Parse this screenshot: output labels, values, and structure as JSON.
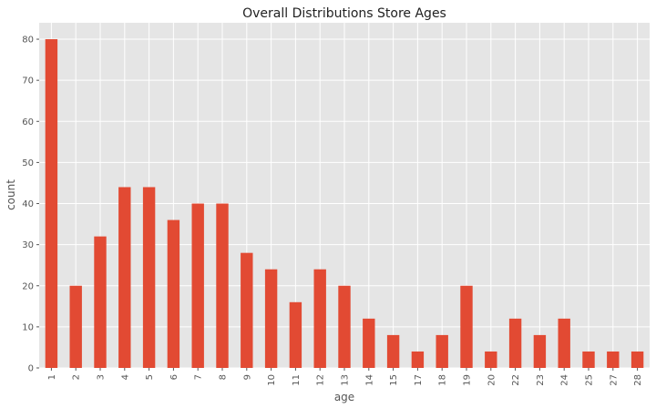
{
  "chart_data": {
    "type": "bar",
    "title": "Overall Distributions Store Ages",
    "xlabel": "age",
    "ylabel": "count",
    "categories": [
      "1",
      "2",
      "3",
      "4",
      "5",
      "6",
      "7",
      "8",
      "9",
      "10",
      "11",
      "12",
      "13",
      "14",
      "15",
      "17",
      "18",
      "19",
      "20",
      "22",
      "23",
      "24",
      "25",
      "27",
      "28"
    ],
    "values": [
      80,
      20,
      32,
      44,
      44,
      36,
      40,
      40,
      28,
      24,
      16,
      24,
      20,
      12,
      8,
      4,
      8,
      20,
      4,
      12,
      8,
      12,
      4,
      4,
      4
    ],
    "ylim": [
      0,
      84
    ],
    "yticks": [
      0,
      10,
      20,
      30,
      40,
      50,
      60,
      70,
      80
    ],
    "grid": true,
    "colors": {
      "bar": "#E24A33",
      "plot_bg": "#E5E5E5",
      "grid": "#FFFFFF"
    }
  }
}
